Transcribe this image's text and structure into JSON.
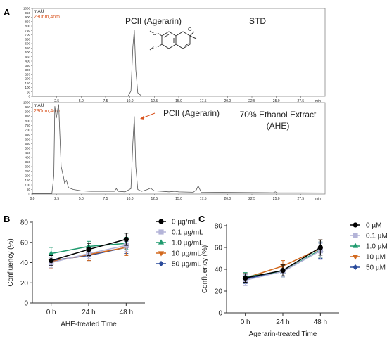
{
  "panel_labels": {
    "a": "A",
    "b": "B",
    "c": "C"
  },
  "colors": {
    "trace": "#555555",
    "annotation": "#d9531e",
    "axis": "#333333",
    "frame": "#888888"
  },
  "chart_data": [
    {
      "id": "chrom_std",
      "type": "line",
      "unit_label": "mAU",
      "wavelength": "230nm,4nm",
      "peak_label": "PCII (Agerarin)",
      "tag": "STD",
      "ylim": [
        0,
        1000
      ],
      "yticks": [
        0,
        50,
        100,
        150,
        200,
        250,
        300,
        350,
        400,
        450,
        500,
        550,
        600,
        650,
        700,
        750,
        800,
        850,
        900,
        950,
        1000
      ],
      "xlim": [
        0,
        30
      ],
      "xticks": [
        "2.5",
        "5.0",
        "7.5",
        "10.0",
        "12.5",
        "15.0",
        "17.5",
        "20.0",
        "22.5",
        "25.0",
        "27.5"
      ],
      "xunit": "min",
      "x": [
        0,
        9.8,
        10.1,
        10.3,
        10.45,
        10.6,
        10.8,
        11.2,
        30
      ],
      "y": [
        2,
        2,
        60,
        560,
        760,
        300,
        40,
        3,
        3
      ]
    },
    {
      "id": "chrom_ahe",
      "type": "line",
      "unit_label": "mAU",
      "wavelength": "230nm,4nm",
      "peak_label": "PCII (Agerarin)",
      "tag": "70% Ethanol Extract\n(AHE)",
      "ylim": [
        0,
        1000
      ],
      "yticks": [
        0,
        50,
        100,
        150,
        200,
        250,
        300,
        350,
        400,
        450,
        500,
        550,
        600,
        650,
        700,
        750,
        800,
        850,
        900,
        950,
        1000
      ],
      "xlim": [
        0,
        30
      ],
      "xticks": [
        "0.0",
        "2.5",
        "5.0",
        "7.5",
        "10.0",
        "12.5",
        "15.0",
        "17.5",
        "20.0",
        "22.5",
        "25.0",
        "27.5"
      ],
      "xunit": "min",
      "x": [
        0,
        2.0,
        2.2,
        2.3,
        2.45,
        2.6,
        2.7,
        2.8,
        2.95,
        3.2,
        3.3,
        3.5,
        3.7,
        4.2,
        5,
        6,
        8.4,
        8.6,
        8.8,
        9.5,
        10.1,
        10.3,
        10.45,
        10.6,
        10.8,
        11.2,
        11.8,
        12.1,
        12.5,
        14,
        14.6,
        15,
        16.5,
        16.8,
        17.0,
        17.3,
        24.7,
        24.9,
        25.1,
        30
      ],
      "y": [
        5,
        5,
        200,
        960,
        830,
        930,
        980,
        700,
        300,
        180,
        120,
        150,
        70,
        50,
        35,
        30,
        30,
        60,
        30,
        25,
        60,
        560,
        850,
        300,
        50,
        30,
        50,
        65,
        35,
        25,
        30,
        24,
        20,
        45,
        90,
        20,
        15,
        25,
        15,
        12
      ]
    },
    {
      "id": "confluency_ahe",
      "type": "line",
      "ylabel": "Confluency (%)",
      "xlabel": "AHE-treated Time",
      "categories": [
        "0 h",
        "24 h",
        "48 h"
      ],
      "ylim": [
        0,
        80
      ],
      "yticks": [
        0,
        20,
        40,
        60,
        80
      ],
      "series": [
        {
          "name": "0 µg/mL",
          "values": [
            42,
            53,
            63
          ],
          "err": [
            5,
            6,
            6
          ],
          "color": "#000000",
          "marker": "circle"
        },
        {
          "name": "0.1 µg/mL",
          "values": [
            40,
            49,
            57
          ],
          "err": [
            5,
            5,
            6
          ],
          "color": "#b4b4d8",
          "marker": "square"
        },
        {
          "name": "1.0 µg/mL",
          "values": [
            49,
            56,
            59
          ],
          "err": [
            6,
            5,
            6
          ],
          "color": "#1f9a6e",
          "marker": "triangle-up"
        },
        {
          "name": "10 µg/mL",
          "values": [
            41,
            48,
            55
          ],
          "err": [
            7,
            6,
            8
          ],
          "color": "#d2691e",
          "marker": "triangle-down"
        },
        {
          "name": "50 µg/mL",
          "values": [
            42,
            47,
            55
          ],
          "err": [
            5,
            5,
            6
          ],
          "color": "#2a4b9b",
          "marker": "diamond"
        }
      ]
    },
    {
      "id": "confluency_agerarin",
      "type": "line",
      "ylabel": "Confluency (%)",
      "xlabel": "Agerarin-treated Time",
      "categories": [
        "0 h",
        "24 h",
        "48 h"
      ],
      "ylim": [
        0,
        80
      ],
      "yticks": [
        0,
        20,
        40,
        60,
        80
      ],
      "series": [
        {
          "name": "0 µM",
          "values": [
            32,
            39,
            60
          ],
          "err": [
            4,
            5,
            7
          ],
          "color": "#000000",
          "marker": "circle"
        },
        {
          "name": "0.1 µM",
          "values": [
            30,
            38,
            57
          ],
          "err": [
            5,
            5,
            8
          ],
          "color": "#b4b4d8",
          "marker": "square"
        },
        {
          "name": "1.0 µM",
          "values": [
            33,
            38,
            58
          ],
          "err": [
            4,
            5,
            7
          ],
          "color": "#1f9a6e",
          "marker": "triangle-up"
        },
        {
          "name": "10 µM",
          "values": [
            32,
            43,
            59
          ],
          "err": [
            4,
            5,
            8
          ],
          "color": "#d2691e",
          "marker": "triangle-down"
        },
        {
          "name": "50 µM",
          "values": [
            31,
            38,
            57
          ],
          "err": [
            4,
            5,
            7
          ],
          "color": "#2a4b9b",
          "marker": "diamond"
        }
      ]
    }
  ]
}
